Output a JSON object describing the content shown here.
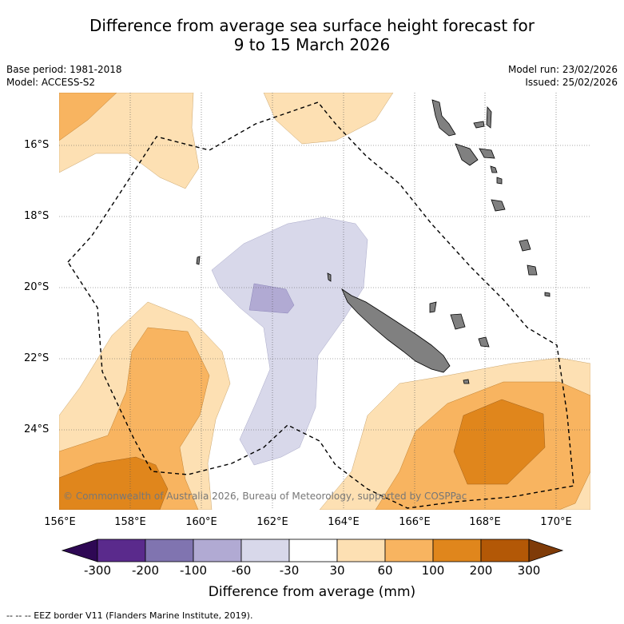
{
  "header": {
    "title_line1": "Difference from average sea surface height forecast for",
    "title_line2": "9 to 15 March 2026",
    "base_period": "Base period: 1981-2018",
    "model": "Model: ACCESS-S2",
    "model_run": "Model run: 23/02/2026",
    "issued": "Issued: 25/02/2026"
  },
  "map": {
    "credit": "© Commonwealth of Australia 2026, Bureau of Meteorology, supported by COSPPac",
    "lat_labels": [
      "16°S",
      "18°S",
      "20°S",
      "22°S",
      "24°S"
    ],
    "lon_labels": [
      "156°E",
      "158°E",
      "160°E",
      "162°E",
      "164°E",
      "166°E",
      "168°E",
      "170°E"
    ],
    "land_color": "#808080",
    "eez_line": "dashed"
  },
  "colorbar": {
    "tick_labels": [
      "-300",
      "-200",
      "-100",
      "-60",
      "-30",
      "30",
      "60",
      "100",
      "200",
      "300"
    ],
    "colors": [
      "#2e0854",
      "#5a2a8c",
      "#8074b0",
      "#b1aad3",
      "#d8d8ea",
      "#ffffff",
      "#fde0b3",
      "#f8b460",
      "#e0861c",
      "#b35806",
      "#7f3b08"
    ],
    "title": "Difference from average (mm)"
  },
  "legend": {
    "eez_text": "--  --  -- EEZ border V11 (Flanders Marine Institute, 2019)."
  }
}
